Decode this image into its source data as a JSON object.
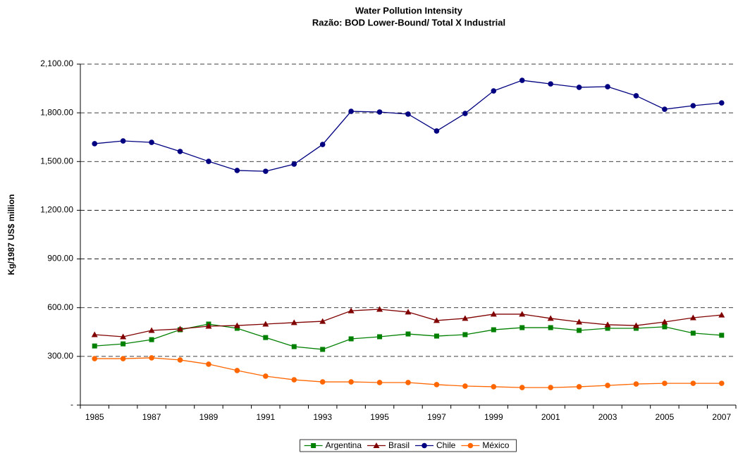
{
  "chart_data": {
    "type": "line",
    "title": "Water Pollution Intensity",
    "subtitle": "Razão: BOD Lower-Bound/ Total X Industrial",
    "y_label": "Kg/1987 US$ million",
    "categories": [
      "1985",
      null,
      "1987",
      null,
      "1989",
      null,
      "1991",
      null,
      "1993",
      null,
      "1995",
      null,
      "1997",
      null,
      "1999",
      null,
      "2001",
      null,
      "2003",
      null,
      "2005",
      null,
      "2007"
    ],
    "ylim": [
      0,
      2100
    ],
    "yticks": [
      {
        "value": 0,
        "label": "-"
      },
      {
        "value": 300,
        "label": "300.00"
      },
      {
        "value": 600,
        "label": "600.00"
      },
      {
        "value": 900,
        "label": "900.00"
      },
      {
        "value": 1200,
        "label": "1,200.00"
      },
      {
        "value": 1500,
        "label": "1,500.00"
      },
      {
        "value": 1800,
        "label": "1,800.00"
      },
      {
        "value": 2100,
        "label": "2,100.00"
      }
    ],
    "grid": true,
    "legend": "bottom",
    "series": [
      {
        "name": "Argentina",
        "color": "#008000",
        "marker": "square",
        "values": [
          364,
          377,
          403,
          464,
          499,
          473,
          416,
          360,
          343,
          408,
          421,
          438,
          425,
          434,
          464,
          477,
          477,
          460,
          473,
          473,
          482,
          443,
          430
        ]
      },
      {
        "name": "Brasil",
        "color": "#800000",
        "marker": "triangle",
        "values": [
          434,
          421,
          460,
          469,
          486,
          490,
          499,
          508,
          516,
          581,
          590,
          573,
          521,
          534,
          560,
          560,
          534,
          512,
          495,
          490,
          512,
          538,
          555
        ]
      },
      {
        "name": "Chile",
        "color": "#000080",
        "marker": "circle",
        "values": [
          1610,
          1627,
          1618,
          1562,
          1501,
          1445,
          1440,
          1484,
          1605,
          1809,
          1805,
          1792,
          1688,
          1796,
          1935,
          2000,
          1978,
          1957,
          1961,
          1905,
          1822,
          1844,
          1861
        ]
      },
      {
        "name": "México",
        "color": "#ff6600",
        "marker": "circle",
        "values": [
          286,
          286,
          291,
          278,
          252,
          213,
          178,
          156,
          143,
          143,
          139,
          139,
          126,
          117,
          113,
          108,
          108,
          113,
          121,
          130,
          134,
          134,
          134
        ]
      }
    ]
  }
}
